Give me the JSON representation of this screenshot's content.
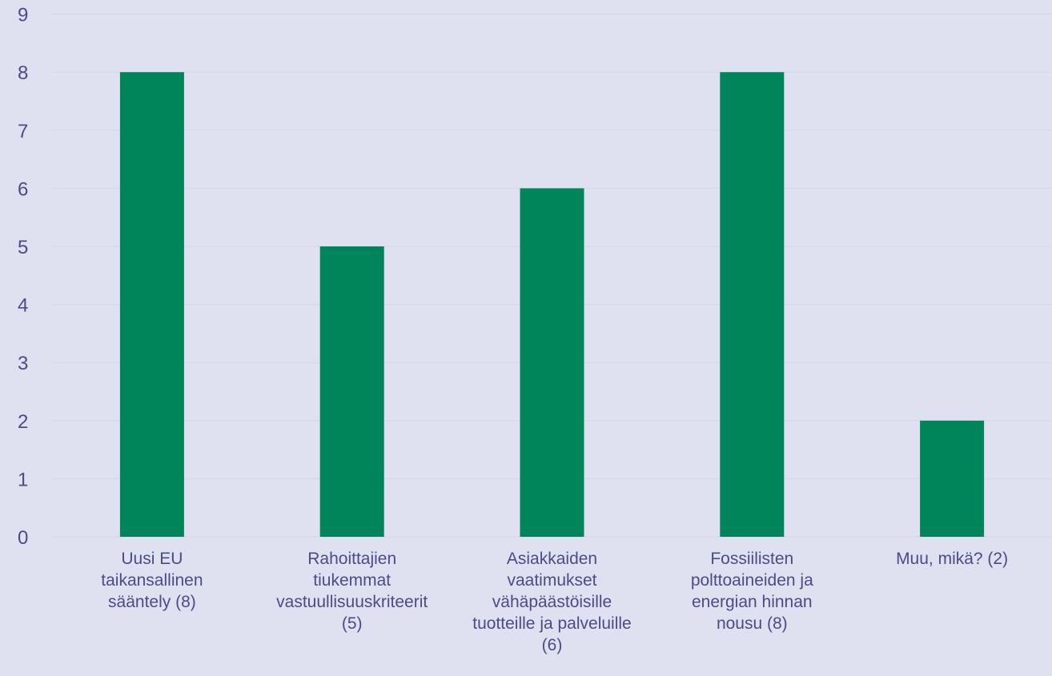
{
  "chart_data": {
    "type": "bar",
    "title": "",
    "xlabel": "",
    "ylabel": "",
    "ylim": [
      0,
      9
    ],
    "yticks": [
      "0",
      "1",
      "2",
      "3",
      "4",
      "5",
      "6",
      "7",
      "8",
      "9"
    ],
    "categories": [
      [
        "Uusi EU",
        "taikansallinen",
        "sääntely (8)"
      ],
      [
        "Rahoittajien",
        "tiukemmat",
        "vastuullisuuskriteerit",
        "(5)"
      ],
      [
        "Asiakkaiden",
        "vaatimukset",
        "vähäpäästöisille",
        "tuotteille ja palveluille",
        "(6)"
      ],
      [
        "Fossiilisten",
        "polttoaineiden ja",
        "energian hinnan",
        "nousu (8)"
      ],
      [
        "Muu, mikä? (2)"
      ]
    ],
    "values": [
      8,
      5,
      6,
      8,
      2
    ],
    "bar_color": "#00855a",
    "background_color": "#dfe0f0",
    "grid": true,
    "legend": "none"
  }
}
